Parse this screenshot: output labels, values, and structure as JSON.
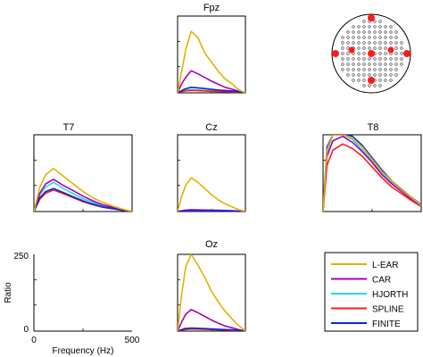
{
  "chart_data": {
    "type": "line",
    "note_units": "Ratio vs Frequency (Hz)",
    "xlabel": "Frequency (Hz)",
    "ylabel": "Ratio",
    "xlim": [
      0,
      500
    ],
    "ylim": [
      0,
      250
    ],
    "xticks": [
      "0",
      "500"
    ],
    "yticks": [
      "0",
      "250"
    ],
    "legend": {
      "placement": "bottom-right",
      "entries": [
        {
          "name": "L-EAR",
          "color": "#e6b000"
        },
        {
          "name": "CAR",
          "color": "#a800b4"
        },
        {
          "name": "HJORTH",
          "color": "#27d8e8"
        },
        {
          "name": "SPLINE",
          "color": "#ff1a1a"
        },
        {
          "name": "FINITE",
          "color": "#0a28d6"
        }
      ]
    },
    "head_map": {
      "highlighted_electrodes": [
        "Fpz",
        "T7",
        "Cz",
        "T8",
        "Oz"
      ],
      "highlight_color": "#ff1a1a"
    },
    "panels": [
      {
        "title": "Fpz",
        "series": [
          {
            "name": "L-EAR",
            "x": [
              0,
              30,
              60,
              100,
              150,
              200,
              250,
              300,
              350,
              400,
              450,
              500
            ],
            "y": [
              0,
              70,
              140,
              200,
              180,
              130,
              100,
              70,
              45,
              30,
              10,
              0
            ]
          },
          {
            "name": "CAR",
            "x": [
              0,
              30,
              60,
              100,
              150,
              200,
              250,
              300,
              350,
              400,
              450,
              500
            ],
            "y": [
              0,
              30,
              50,
              72,
              62,
              50,
              38,
              28,
              18,
              12,
              5,
              0
            ]
          },
          {
            "name": "HJORTH",
            "x": [
              0,
              50,
              100,
              200,
              300,
              400,
              500
            ],
            "y": [
              0,
              8,
              10,
              8,
              6,
              4,
              0
            ]
          },
          {
            "name": "SPLINE",
            "x": [
              0,
              50,
              100,
              200,
              300,
              400,
              500
            ],
            "y": [
              0,
              6,
              8,
              6,
              4,
              3,
              0
            ]
          },
          {
            "name": "FINITE",
            "x": [
              0,
              50,
              100,
              200,
              300,
              400,
              500
            ],
            "y": [
              0,
              12,
              18,
              14,
              9,
              6,
              0
            ]
          }
        ]
      },
      {
        "title": "T7",
        "series": [
          {
            "name": "L-EAR",
            "x": [
              0,
              30,
              60,
              100,
              150,
              200,
              250,
              300,
              350,
              400,
              450,
              500
            ],
            "y": [
              0,
              80,
              120,
              140,
              115,
              90,
              65,
              45,
              30,
              18,
              8,
              0
            ]
          },
          {
            "name": "CAR",
            "x": [
              0,
              30,
              60,
              100,
              150,
              200,
              250,
              300,
              350,
              400,
              450,
              500
            ],
            "y": [
              0,
              60,
              90,
              105,
              85,
              68,
              50,
              35,
              22,
              14,
              6,
              0
            ]
          },
          {
            "name": "HJORTH",
            "x": [
              0,
              30,
              60,
              100,
              150,
              200,
              250,
              300,
              350,
              400,
              450,
              500
            ],
            "y": [
              0,
              55,
              80,
              95,
              75,
              58,
              42,
              30,
              18,
              12,
              5,
              0
            ]
          },
          {
            "name": "SPLINE",
            "x": [
              0,
              30,
              60,
              100,
              150,
              200,
              250,
              300,
              350,
              400,
              450,
              500
            ],
            "y": [
              0,
              40,
              60,
              70,
              58,
              45,
              32,
              22,
              14,
              9,
              4,
              0
            ]
          },
          {
            "name": "FINITE",
            "x": [
              0,
              30,
              60,
              100,
              150,
              200,
              250,
              300,
              350,
              400,
              450,
              500
            ],
            "y": [
              0,
              45,
              65,
              75,
              62,
              48,
              35,
              24,
              15,
              10,
              4,
              0
            ]
          }
        ]
      },
      {
        "title": "Cz",
        "series": [
          {
            "name": "L-EAR",
            "x": [
              0,
              30,
              60,
              100,
              150,
              200,
              250,
              300,
              350,
              400,
              450,
              500
            ],
            "y": [
              0,
              50,
              85,
              110,
              95,
              75,
              55,
              38,
              25,
              15,
              6,
              0
            ]
          },
          {
            "name": "CAR",
            "x": [
              0,
              50,
              100,
              200,
              300,
              400,
              500
            ],
            "y": [
              0,
              4,
              6,
              5,
              4,
              3,
              0
            ]
          },
          {
            "name": "HJORTH",
            "x": [
              0,
              50,
              100,
              200,
              300,
              400,
              500
            ],
            "y": [
              0,
              2,
              3,
              3,
              2,
              2,
              0
            ]
          },
          {
            "name": "SPLINE",
            "x": [
              0,
              50,
              100,
              200,
              300,
              400,
              500
            ],
            "y": [
              0,
              3,
              4,
              4,
              3,
              2,
              0
            ]
          },
          {
            "name": "FINITE",
            "x": [
              0,
              50,
              100,
              200,
              300,
              400,
              500
            ],
            "y": [
              0,
              2,
              3,
              3,
              2,
              2,
              0
            ]
          }
        ]
      },
      {
        "title": "T8",
        "series": [
          {
            "name": "L-EAR",
            "x": [
              0,
              20,
              50,
              100,
              150,
              200,
              250,
              300,
              350,
              400,
              450,
              500
            ],
            "y": [
              0,
              200,
              250,
              250,
              240,
              210,
              170,
              130,
              100,
              70,
              45,
              20
            ]
          },
          {
            "name": "CAR",
            "x": [
              0,
              20,
              50,
              100,
              150,
              200,
              250,
              300,
              350,
              400,
              450,
              500
            ],
            "y": [
              0,
              180,
              230,
              245,
              225,
              195,
              160,
              120,
              90,
              65,
              40,
              18
            ]
          },
          {
            "name": "HJORTH",
            "x": [
              0,
              20,
              50,
              100,
              150,
              200,
              250,
              300,
              350,
              400,
              450,
              500
            ],
            "y": [
              0,
              190,
              250,
              250,
              235,
              200,
              165,
              125,
              95,
              68,
              42,
              20
            ]
          },
          {
            "name": "SPLINE",
            "x": [
              0,
              20,
              50,
              100,
              150,
              200,
              250,
              300,
              350,
              400,
              450,
              500
            ],
            "y": [
              0,
              150,
              200,
              220,
              205,
              180,
              145,
              110,
              80,
              58,
              36,
              16
            ]
          },
          {
            "name": "FINITE",
            "x": [
              0,
              20,
              50,
              100,
              150,
              200,
              250,
              300,
              350,
              400,
              450,
              500
            ],
            "y": [
              0,
              210,
              250,
              250,
              245,
              215,
              175,
              135,
              100,
              72,
              46,
              22
            ]
          }
        ]
      },
      {
        "title": "",
        "series": []
      },
      {
        "title": "Oz",
        "series": [
          {
            "name": "L-EAR",
            "x": [
              0,
              30,
              60,
              100,
              150,
              200,
              250,
              300,
              350,
              400,
              450,
              500
            ],
            "y": [
              0,
              120,
              210,
              250,
              215,
              175,
              130,
              95,
              65,
              40,
              18,
              0
            ]
          },
          {
            "name": "CAR",
            "x": [
              0,
              30,
              60,
              100,
              150,
              200,
              250,
              300,
              350,
              400,
              450,
              500
            ],
            "y": [
              0,
              30,
              55,
              70,
              60,
              48,
              36,
              26,
              17,
              11,
              5,
              0
            ]
          },
          {
            "name": "HJORTH",
            "x": [
              0,
              50,
              100,
              200,
              300,
              400,
              500
            ],
            "y": [
              0,
              6,
              8,
              6,
              5,
              3,
              0
            ]
          },
          {
            "name": "SPLINE",
            "x": [
              0,
              50,
              100,
              200,
              300,
              400,
              500
            ],
            "y": [
              0,
              5,
              7,
              6,
              4,
              3,
              0
            ]
          },
          {
            "name": "FINITE",
            "x": [
              0,
              50,
              100,
              200,
              300,
              400,
              500
            ],
            "y": [
              0,
              8,
              10,
              8,
              6,
              4,
              0
            ]
          }
        ]
      }
    ]
  }
}
